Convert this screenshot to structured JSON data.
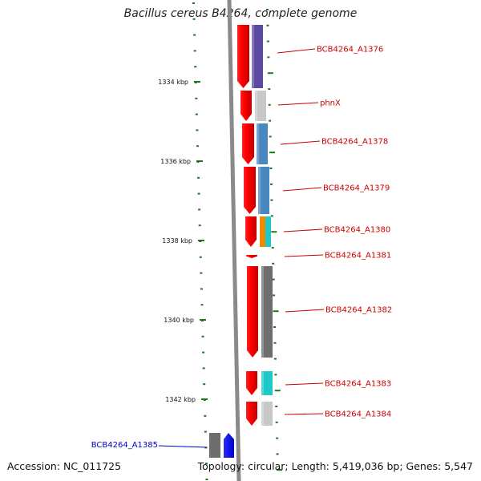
{
  "title": "Bacillus cereus B4264, complete genome",
  "accession": "Accession: NC_011725",
  "summary": "Topology: circular; Length: 5,419,036 bp; Genes: 5,547",
  "colors": {
    "forward_label": "#cc0000",
    "reverse_label": "#0000cc",
    "tick": "#1a7a1a",
    "backbone": "#8a8a8a"
  },
  "kbp_labels": [
    "1334 kbp",
    "1336 kbp",
    "1338 kbp",
    "1340 kbp",
    "1342 kbp"
  ],
  "genes": [
    {
      "name": "BCB4264_A1376",
      "strand": "+",
      "cog_color": "#5a4aa0"
    },
    {
      "name": "phnX",
      "strand": "+",
      "cog_color": "#c8c8c8"
    },
    {
      "name": "BCB4264_A1378",
      "strand": "+",
      "cog_color": "#4a86c0"
    },
    {
      "name": "BCB4264_A1379",
      "strand": "+",
      "cog_color": "#4a86c0"
    },
    {
      "name": "BCB4264_A1380",
      "strand": "+",
      "cog_colors": [
        "#f08a00",
        "#20c8c8"
      ]
    },
    {
      "name": "BCB4264_A1381",
      "strand": "+",
      "cog_color": ""
    },
    {
      "name": "BCB4264_A1382",
      "strand": "+",
      "cog_color": "#6e6e6e"
    },
    {
      "name": "BCB4264_A1383",
      "strand": "+",
      "cog_color": "#20c8c8"
    },
    {
      "name": "BCB4264_A1384",
      "strand": "+",
      "cog_color": "#c8c8c8"
    },
    {
      "name": "BCB4264_A1385",
      "strand": "-",
      "cog_color": "#6e6e6e"
    }
  ]
}
